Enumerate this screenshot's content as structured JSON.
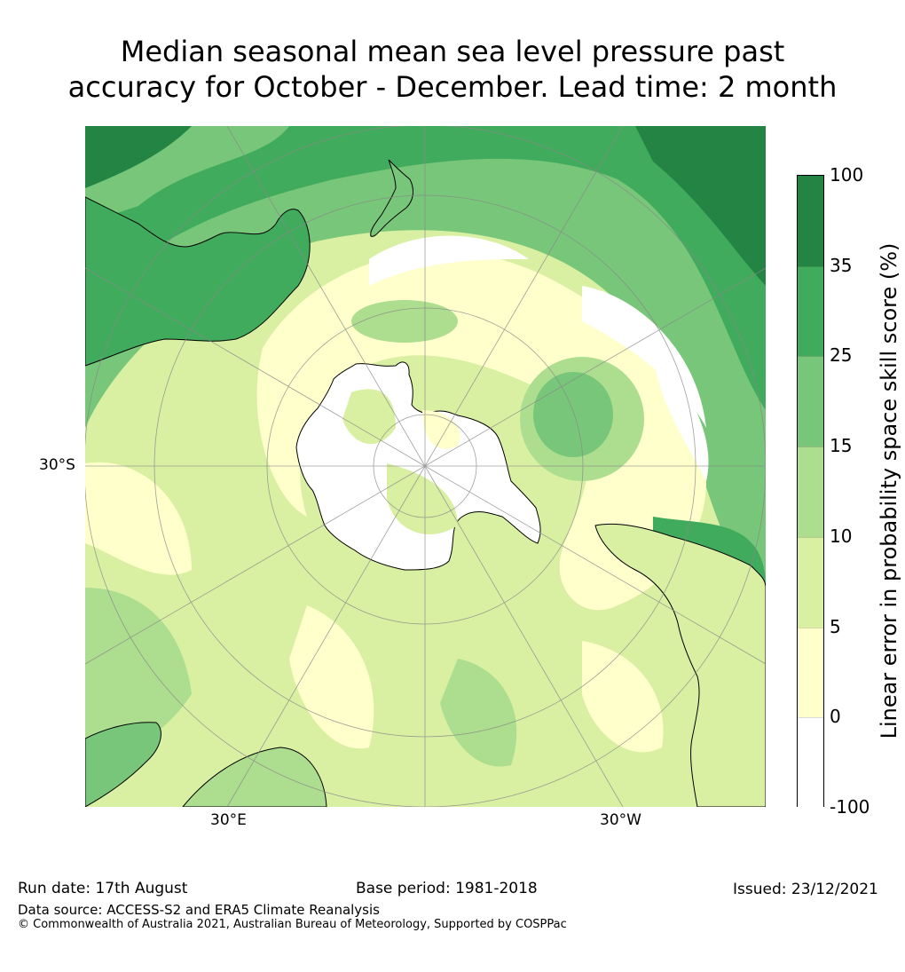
{
  "title_line1": "Median seasonal mean sea level pressure past",
  "title_line2": "accuracy for October - December. Lead time: 2 month",
  "map": {
    "projection": "south-polar-stereographic",
    "lat_label": "30°S",
    "lon_label_east": "30°E",
    "lon_label_west": "30°W"
  },
  "colorbar": {
    "label": "Linear error in probability space skill score (%)",
    "ticks": [
      "100",
      "35",
      "25",
      "15",
      "10",
      "5",
      "0",
      "-100"
    ],
    "bins": [
      {
        "range": "35 to 100",
        "color": "#238443"
      },
      {
        "range": "25 to 35",
        "color": "#41ab5d"
      },
      {
        "range": "15 to 25",
        "color": "#78c679"
      },
      {
        "range": "10 to 15",
        "color": "#addd8e"
      },
      {
        "range": "5 to 10",
        "color": "#d9f0a3"
      },
      {
        "range": "0 to 5",
        "color": "#ffffcc"
      },
      {
        "range": "-100 to 0",
        "color": "#ffffff"
      }
    ]
  },
  "footer": {
    "run_date": "Run date: 17th August",
    "base_period": "Base period: 1981-2018",
    "issued": "Issued: 23/12/2021",
    "data_source": "Data source: ACCESS-S2 and ERA5 Climate Reanalysis",
    "copyright": "© Commonwealth of Australia 2021, Australian Bureau of Meteorology, Supported by COSPPac"
  }
}
